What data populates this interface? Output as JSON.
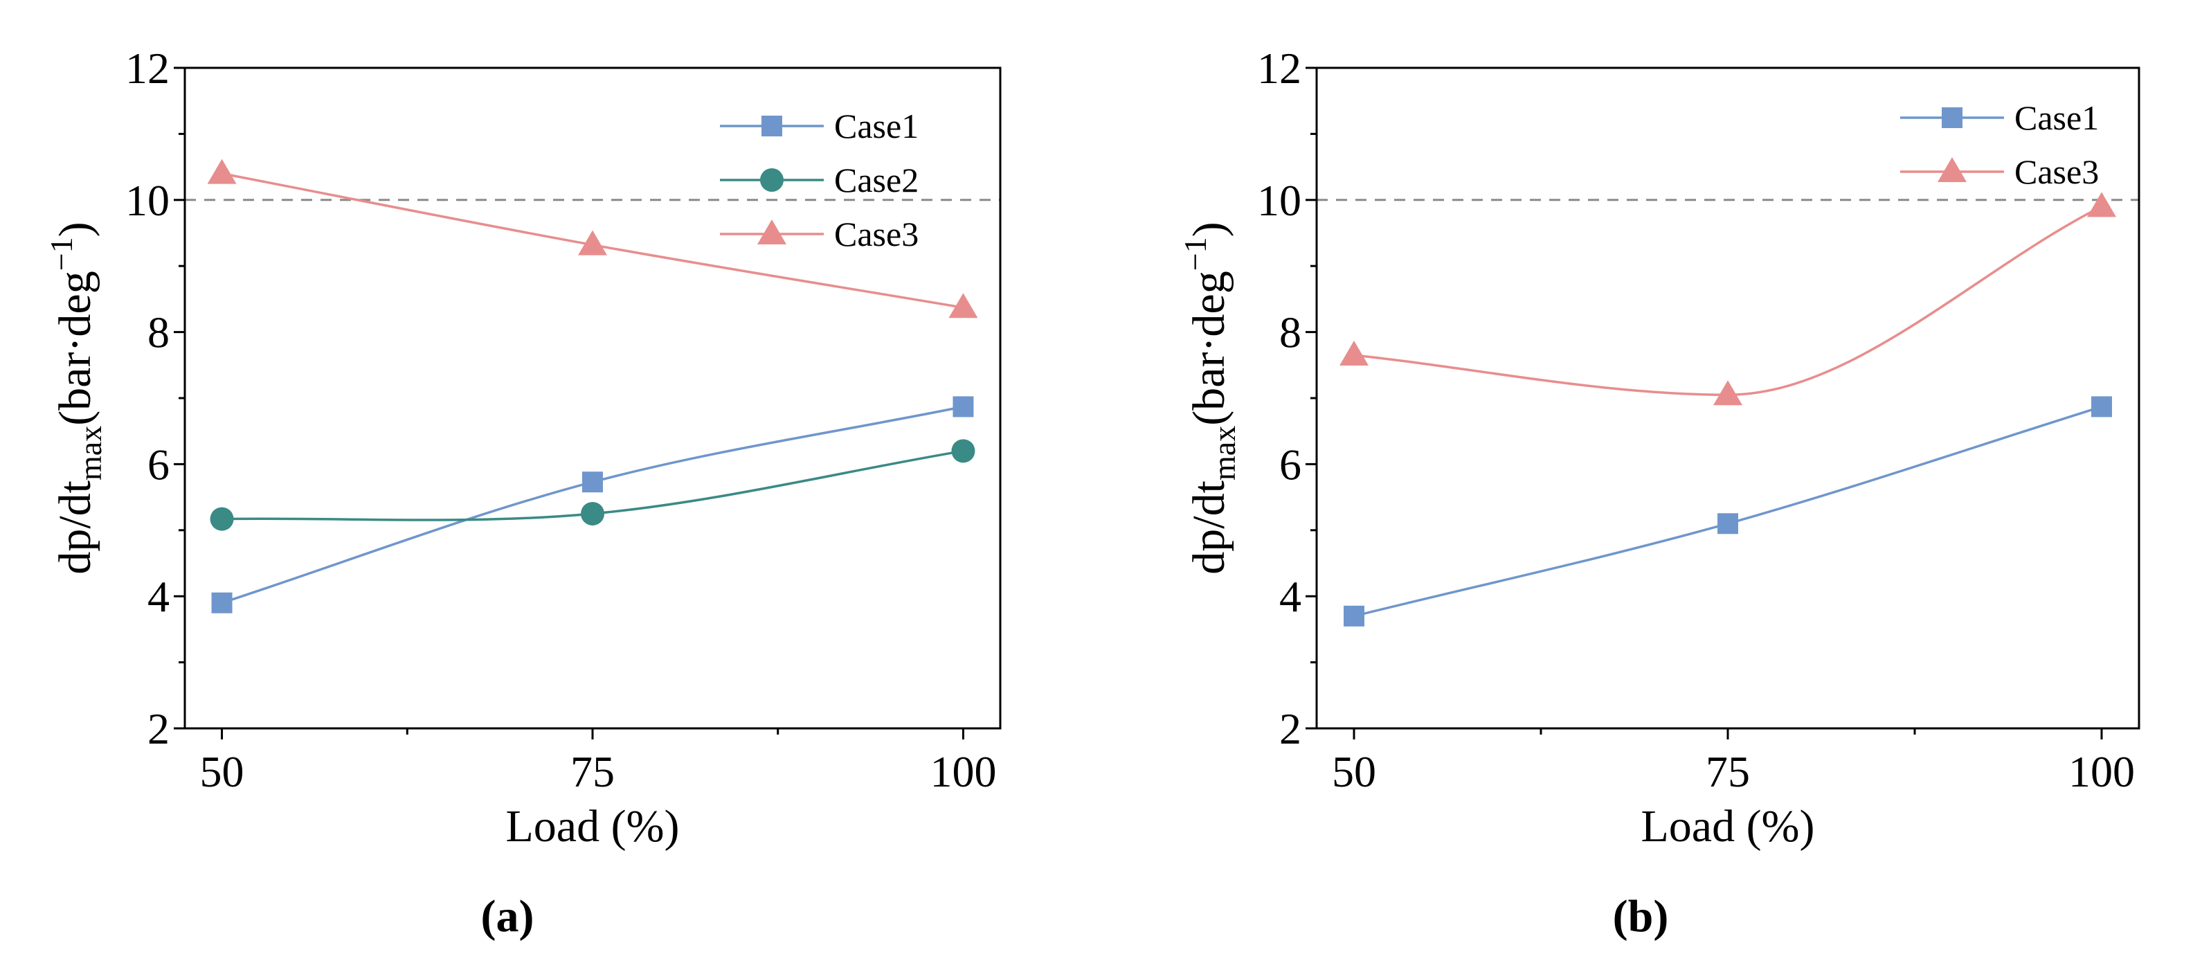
{
  "chart_data": [
    {
      "type": "line",
      "panel_label": "(a)",
      "xlabel": "Load (%)",
      "ylabel": "dp/dtmax(bar·deg−1)",
      "ylabel_parts": {
        "base": "dp/dt",
        "sub": "max",
        "paren_open": "(bar·deg",
        "sup": "−1",
        "paren_close": ")"
      },
      "x": [
        50,
        75,
        100
      ],
      "x_ticks": [
        50,
        75,
        100
      ],
      "xlim": [
        47.5,
        102.5
      ],
      "ylim": [
        2,
        12
      ],
      "y_ticks": [
        2,
        4,
        6,
        8,
        10,
        12
      ],
      "reference_line": 10,
      "legend_position": "top-right",
      "series": [
        {
          "name": "Case1",
          "values": [
            3.9,
            5.73,
            6.87
          ],
          "color": "#6f96cc",
          "marker": "square"
        },
        {
          "name": "Case2",
          "values": [
            5.17,
            5.25,
            6.2
          ],
          "color": "#3a8a86",
          "marker": "circle"
        },
        {
          "name": "Case3",
          "values": [
            10.4,
            9.32,
            8.37
          ],
          "color": "#e88d8d",
          "marker": "triangle"
        }
      ]
    },
    {
      "type": "line",
      "panel_label": "(b)",
      "xlabel": "Load (%)",
      "ylabel": "dp/dtmax(bar·deg−1)",
      "ylabel_parts": {
        "base": "dp/dt",
        "sub": "max",
        "paren_open": "(bar·deg",
        "sup": "−1",
        "paren_close": ")"
      },
      "x": [
        50,
        75,
        100
      ],
      "x_ticks": [
        50,
        75,
        100
      ],
      "xlim": [
        47.5,
        102.5
      ],
      "ylim": [
        2,
        12
      ],
      "y_ticks": [
        2,
        4,
        6,
        8,
        10,
        12
      ],
      "reference_line": 10,
      "legend_position": "top-right",
      "series": [
        {
          "name": "Case1",
          "values": [
            3.7,
            5.1,
            6.87
          ],
          "color": "#6f96cc",
          "marker": "square"
        },
        {
          "name": "Case3",
          "values": [
            7.65,
            7.05,
            9.9
          ],
          "color": "#e88d8d",
          "marker": "triangle"
        }
      ]
    }
  ]
}
